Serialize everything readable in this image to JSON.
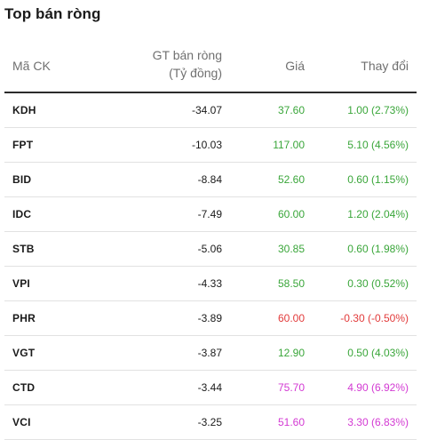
{
  "title": "Top bán ròng",
  "headers": {
    "symbol": "Mã CK",
    "net_value_line1": "GT bán ròng",
    "net_value_line2": "(Tỷ đồng)",
    "price": "Giá",
    "change": "Thay đổi"
  },
  "colors": {
    "up": "#3aa63a",
    "down": "#e23b3b",
    "ceiling": "#d33ad3"
  },
  "rows": [
    {
      "symbol": "KDH",
      "net_value": "-34.07",
      "price": "37.60",
      "change": "1.00 (2.73%)",
      "trend": "up"
    },
    {
      "symbol": "FPT",
      "net_value": "-10.03",
      "price": "117.00",
      "change": "5.10 (4.56%)",
      "trend": "up"
    },
    {
      "symbol": "BID",
      "net_value": "-8.84",
      "price": "52.60",
      "change": "0.60 (1.15%)",
      "trend": "up"
    },
    {
      "symbol": "IDC",
      "net_value": "-7.49",
      "price": "60.00",
      "change": "1.20 (2.04%)",
      "trend": "up"
    },
    {
      "symbol": "STB",
      "net_value": "-5.06",
      "price": "30.85",
      "change": "0.60 (1.98%)",
      "trend": "up"
    },
    {
      "symbol": "VPI",
      "net_value": "-4.33",
      "price": "58.50",
      "change": "0.30 (0.52%)",
      "trend": "up"
    },
    {
      "symbol": "PHR",
      "net_value": "-3.89",
      "price": "60.00",
      "change": "-0.30 (-0.50%)",
      "trend": "down"
    },
    {
      "symbol": "VGT",
      "net_value": "-3.87",
      "price": "12.90",
      "change": "0.50 (4.03%)",
      "trend": "up"
    },
    {
      "symbol": "CTD",
      "net_value": "-3.44",
      "price": "75.70",
      "change": "4.90 (6.92%)",
      "trend": "ceil"
    },
    {
      "symbol": "VCI",
      "net_value": "-3.25",
      "price": "51.60",
      "change": "3.30 (6.83%)",
      "trend": "ceil"
    }
  ]
}
